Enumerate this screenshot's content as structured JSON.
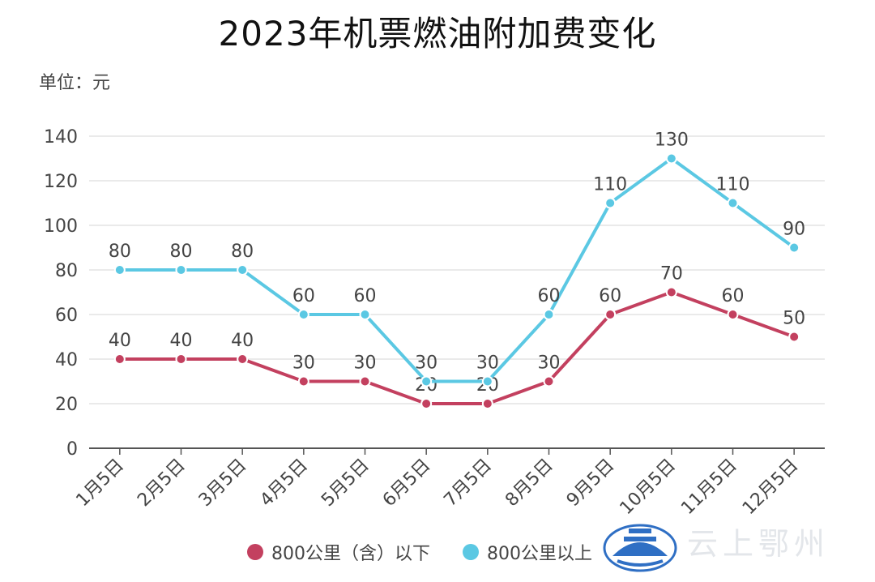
{
  "title": "2023年机票燃油附加费变化",
  "unit": "单位：元",
  "watermark": "云上鄂州",
  "chart_data": {
    "type": "line",
    "title": "2023年机票燃油附加费变化",
    "categories": [
      "1月5日",
      "2月5日",
      "3月5日",
      "4月5日",
      "5月5日",
      "6月5日",
      "7月5日",
      "8月5日",
      "9月5日",
      "10月5日",
      "11月5日",
      "12月5日"
    ],
    "yticks": [
      0,
      20,
      40,
      60,
      80,
      100,
      120,
      140
    ],
    "ylim": [
      0,
      140
    ],
    "grid": true,
    "legend_position": "bottom",
    "series": [
      {
        "name": "800公里（含）以下",
        "color": "#c3405f",
        "values": [
          40,
          40,
          40,
          30,
          30,
          20,
          20,
          30,
          60,
          70,
          60,
          50
        ]
      },
      {
        "name": "800公里以上",
        "color": "#5bc8e3",
        "values": [
          80,
          80,
          80,
          60,
          60,
          30,
          30,
          60,
          110,
          130,
          110,
          90
        ]
      }
    ]
  }
}
